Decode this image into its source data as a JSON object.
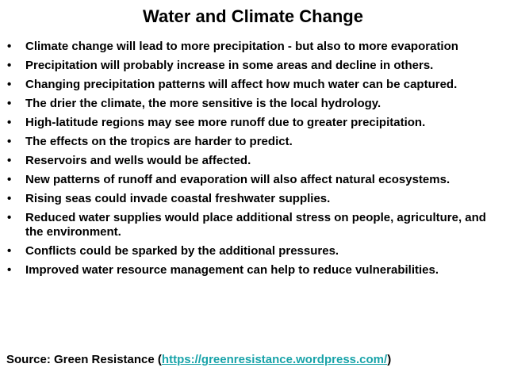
{
  "slide": {
    "title": "Water and Climate Change",
    "bullet_glyph": "•",
    "bullets": [
      "Climate change will lead to more precipitation - but also to more evaporation",
      "Precipitation will probably increase in some areas and decline in others.",
      "Changing precipitation patterns will affect how much water can be captured.",
      "The drier the climate, the more sensitive is the local hydrology.",
      "High-latitude regions may see more runoff due to greater precipitation.",
      "The effects on the tropics are harder to predict.",
      "Reservoirs and wells would be affected.",
      "New patterns of runoff and evaporation will also affect natural ecosystems.",
      "Rising seas could invade coastal freshwater supplies.",
      "Reduced water supplies would place additional stress on people, agriculture, and the environment.",
      "Conflicts could be sparked by the additional pressures.",
      "Improved water resource management can help to reduce vulnerabilities."
    ],
    "source": {
      "prefix": "Source: Green Resistance (",
      "link_text": "https://greenresistance.wordpress.com/",
      "suffix": ")"
    },
    "colors": {
      "text": "#000000",
      "link": "#18a3a9",
      "background": "#ffffff"
    }
  }
}
